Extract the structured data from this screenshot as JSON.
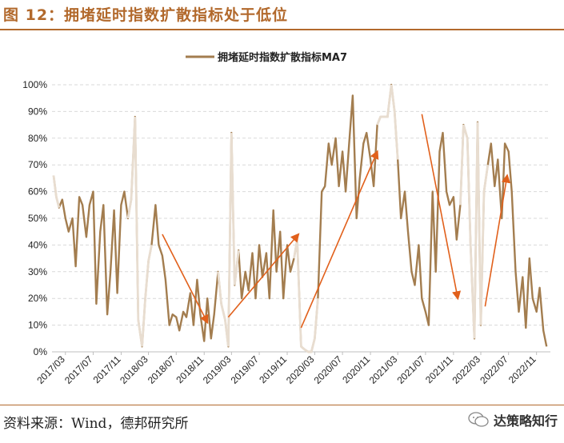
{
  "figure": {
    "title": "图 12：拥堵延时指数扩散指标处于低位",
    "source": "资料来源：Wind，德邦研究所",
    "watermark": "达策略知行",
    "watermark_icon": "wechat-icon"
  },
  "colors": {
    "series": "#a37d4f",
    "series_faint": "#e8ddd0",
    "arrow": "#e1601b",
    "title": "#b2692c",
    "grid": "#d9d9d9"
  },
  "chart_data": {
    "type": "line",
    "legend": [
      "拥堵延时指数扩散指标MA7"
    ],
    "legend_position": "top-center",
    "ylim": [
      0,
      100
    ],
    "y_unit": "%",
    "y_ticks": [
      "0%",
      "10%",
      "20%",
      "30%",
      "40%",
      "50%",
      "60%",
      "70%",
      "80%",
      "90%",
      "100%"
    ],
    "x_ticks": [
      "2017/03",
      "2017/07",
      "2017/11",
      "2018/03",
      "2018/07",
      "2018/11",
      "2019/03",
      "2019/07",
      "2019/11",
      "2020/03",
      "2020/07",
      "2020/11",
      "2021/03",
      "2021/07",
      "2021/11",
      "2022/03",
      "2022/07",
      "2022/11"
    ],
    "grid": "horizontal dashed",
    "series": [
      {
        "name": "拥堵延时指数扩散指标MA7",
        "points": [
          [
            "2017/01/08",
            66
          ],
          [
            "2017/01/20",
            58
          ],
          [
            "2017/02/01",
            54
          ],
          [
            "2017/02/15",
            57
          ],
          [
            "2017/03/01",
            50
          ],
          [
            "2017/03/15",
            45
          ],
          [
            "2017/04/01",
            50
          ],
          [
            "2017/04/15",
            32
          ],
          [
            "2017/05/01",
            58
          ],
          [
            "2017/05/15",
            55
          ],
          [
            "2017/06/01",
            43
          ],
          [
            "2017/06/15",
            55
          ],
          [
            "2017/07/01",
            60
          ],
          [
            "2017/07/15",
            18
          ],
          [
            "2017/08/01",
            45
          ],
          [
            "2017/08/15",
            55
          ],
          [
            "2017/09/01",
            14
          ],
          [
            "2017/09/15",
            30
          ],
          [
            "2017/10/01",
            53
          ],
          [
            "2017/10/15",
            22
          ],
          [
            "2017/11/01",
            55
          ],
          [
            "2017/11/15",
            60
          ],
          [
            "2017/12/01",
            50
          ],
          [
            "2017/12/15",
            57
          ],
          [
            "2018/01/01",
            88
          ],
          [
            "2018/01/15",
            12
          ],
          [
            "2018/02/01",
            2
          ],
          [
            "2018/02/15",
            20
          ],
          [
            "2018/03/01",
            34
          ],
          [
            "2018/03/15",
            40
          ],
          [
            "2018/04/01",
            55
          ],
          [
            "2018/04/15",
            40
          ],
          [
            "2018/05/01",
            36
          ],
          [
            "2018/05/15",
            27
          ],
          [
            "2018/06/01",
            10
          ],
          [
            "2018/06/15",
            14
          ],
          [
            "2018/07/01",
            13
          ],
          [
            "2018/07/15",
            8
          ],
          [
            "2018/08/01",
            15
          ],
          [
            "2018/08/15",
            13
          ],
          [
            "2018/09/01",
            22
          ],
          [
            "2018/09/15",
            10
          ],
          [
            "2018/10/01",
            27
          ],
          [
            "2018/10/15",
            14
          ],
          [
            "2018/11/01",
            4
          ],
          [
            "2018/11/15",
            20
          ],
          [
            "2018/12/01",
            5
          ],
          [
            "2018/12/15",
            14
          ],
          [
            "2019/01/01",
            30
          ],
          [
            "2019/01/15",
            18
          ],
          [
            "2019/02/01",
            12
          ],
          [
            "2019/02/15",
            2
          ],
          [
            "2019/03/01",
            82
          ],
          [
            "2019/03/15",
            25
          ],
          [
            "2019/04/01",
            38
          ],
          [
            "2019/04/15",
            20
          ],
          [
            "2019/05/01",
            30
          ],
          [
            "2019/05/15",
            23
          ],
          [
            "2019/06/01",
            37
          ],
          [
            "2019/06/15",
            20
          ],
          [
            "2019/07/01",
            40
          ],
          [
            "2019/07/15",
            28
          ],
          [
            "2019/08/01",
            37
          ],
          [
            "2019/08/15",
            20
          ],
          [
            "2019/09/01",
            53
          ],
          [
            "2019/09/15",
            30
          ],
          [
            "2019/10/01",
            45
          ],
          [
            "2019/10/15",
            20
          ],
          [
            "2019/11/01",
            40
          ],
          [
            "2019/11/15",
            30
          ],
          [
            "2019/12/01",
            35
          ],
          [
            "2019/12/15",
            42
          ],
          [
            "2020/01/01",
            2
          ],
          [
            "2020/01/15",
            1
          ],
          [
            "2020/02/01",
            0
          ],
          [
            "2020/02/15",
            0
          ],
          [
            "2020/03/01",
            5
          ],
          [
            "2020/03/15",
            20
          ],
          [
            "2020/04/01",
            60
          ],
          [
            "2020/04/15",
            62
          ],
          [
            "2020/05/01",
            78
          ],
          [
            "2020/05/15",
            70
          ],
          [
            "2020/06/01",
            80
          ],
          [
            "2020/06/15",
            62
          ],
          [
            "2020/07/01",
            75
          ],
          [
            "2020/07/15",
            60
          ],
          [
            "2020/08/01",
            80
          ],
          [
            "2020/08/15",
            96
          ],
          [
            "2020/09/01",
            50
          ],
          [
            "2020/09/15",
            65
          ],
          [
            "2020/10/01",
            78
          ],
          [
            "2020/10/15",
            82
          ],
          [
            "2020/11/01",
            72
          ],
          [
            "2020/11/15",
            62
          ],
          [
            "2020/12/01",
            85
          ],
          [
            "2020/12/15",
            88
          ],
          [
            "2021/01/01",
            88
          ],
          [
            "2021/01/15",
            88
          ],
          [
            "2021/02/01",
            100
          ],
          [
            "2021/02/15",
            90
          ],
          [
            "2021/03/01",
            72
          ],
          [
            "2021/03/15",
            50
          ],
          [
            "2021/04/01",
            60
          ],
          [
            "2021/04/15",
            45
          ],
          [
            "2021/05/01",
            30
          ],
          [
            "2021/05/15",
            25
          ],
          [
            "2021/06/01",
            40
          ],
          [
            "2021/06/15",
            20
          ],
          [
            "2021/07/01",
            15
          ],
          [
            "2021/07/15",
            10
          ],
          [
            "2021/08/01",
            60
          ],
          [
            "2021/08/15",
            30
          ],
          [
            "2021/09/01",
            75
          ],
          [
            "2021/09/15",
            82
          ],
          [
            "2021/10/01",
            60
          ],
          [
            "2021/10/15",
            55
          ],
          [
            "2021/11/01",
            58
          ],
          [
            "2021/11/15",
            42
          ],
          [
            "2021/12/01",
            55
          ],
          [
            "2021/12/15",
            85
          ],
          [
            "2022/01/01",
            80
          ],
          [
            "2022/01/15",
            40
          ],
          [
            "2022/02/01",
            5
          ],
          [
            "2022/02/15",
            86
          ],
          [
            "2022/03/01",
            10
          ],
          [
            "2022/03/15",
            60
          ],
          [
            "2022/04/01",
            70
          ],
          [
            "2022/04/15",
            78
          ],
          [
            "2022/05/01",
            62
          ],
          [
            "2022/05/15",
            72
          ],
          [
            "2022/06/01",
            50
          ],
          [
            "2022/06/15",
            78
          ],
          [
            "2022/07/01",
            75
          ],
          [
            "2022/07/15",
            60
          ],
          [
            "2022/08/01",
            30
          ],
          [
            "2022/08/15",
            15
          ],
          [
            "2022/09/01",
            28
          ],
          [
            "2022/09/15",
            9
          ],
          [
            "2022/10/01",
            35
          ],
          [
            "2022/10/15",
            20
          ],
          [
            "2022/11/01",
            15
          ],
          [
            "2022/11/15",
            24
          ],
          [
            "2022/12/01",
            8
          ],
          [
            "2022/12/15",
            2
          ]
        ]
      }
    ],
    "faint_segments": [
      [
        "2017/01/01",
        "2017/01/15"
      ],
      [
        "2017/12/20",
        "2018/02/20"
      ],
      [
        "2019/01/20",
        "2019/03/20"
      ],
      [
        "2019/12/20",
        "2020/02/25"
      ],
      [
        "2020/12/20",
        "2021/02/10"
      ],
      [
        "2021/12/20",
        "2022/03/10"
      ]
    ],
    "annotations": [
      {
        "type": "arrow",
        "from": [
          "2018/05/01",
          44
        ],
        "to": [
          "2018/11/15",
          11
        ]
      },
      {
        "type": "arrow",
        "from": [
          "2019/02/15",
          13
        ],
        "to": [
          "2019/12/20",
          44
        ]
      },
      {
        "type": "arrow",
        "from": [
          "2020/01/01",
          9
        ],
        "to": [
          "2020/12/01",
          75
        ]
      },
      {
        "type": "arrow",
        "from": [
          "2021/06/15",
          89
        ],
        "to": [
          "2021/11/20",
          20
        ]
      },
      {
        "type": "arrow",
        "from": [
          "2022/03/20",
          17
        ],
        "to": [
          "2022/06/25",
          66
        ]
      }
    ]
  }
}
